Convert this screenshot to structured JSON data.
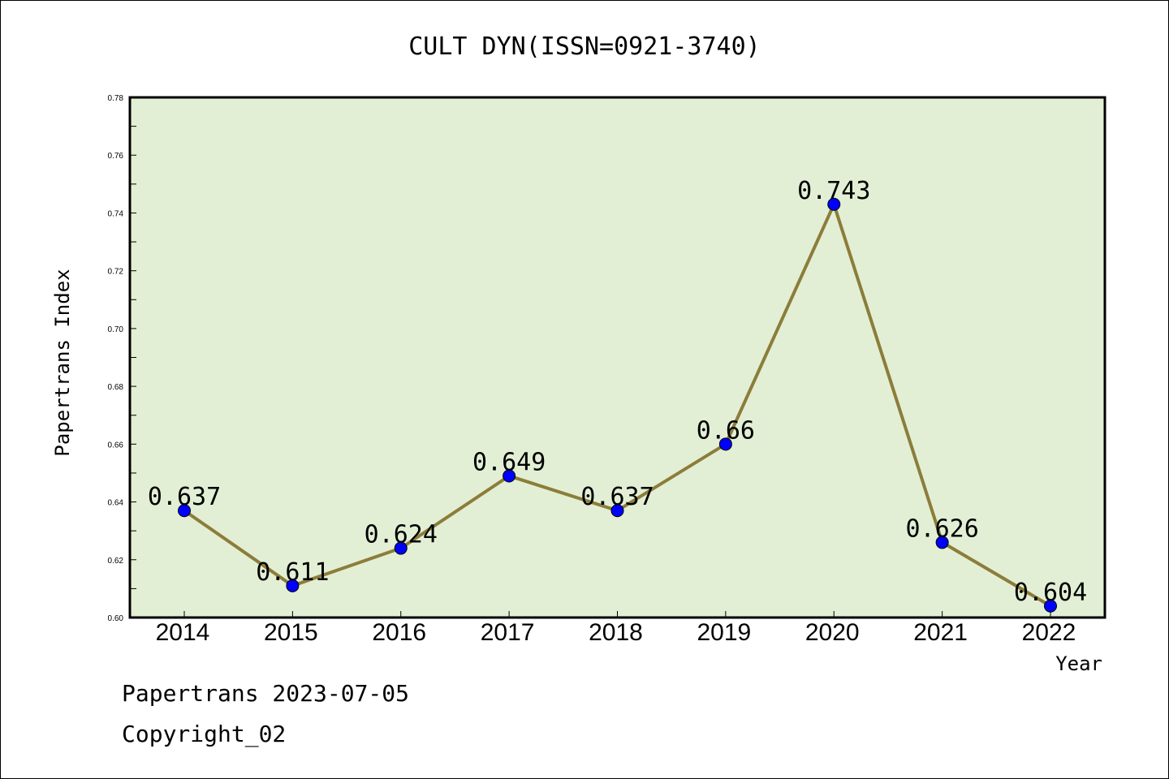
{
  "chart_data": {
    "type": "line",
    "title": "CULT DYN(ISSN=0921-3740)",
    "xlabel": "Year",
    "ylabel": "Papertrans Index",
    "categories": [
      "2014",
      "2015",
      "2016",
      "2017",
      "2018",
      "2019",
      "2020",
      "2021",
      "2022"
    ],
    "values": [
      0.637,
      0.611,
      0.624,
      0.649,
      0.637,
      0.66,
      0.743,
      0.626,
      0.604
    ],
    "data_labels": [
      "0.637",
      "0.611",
      "0.624",
      "0.649",
      "0.637",
      "0.66",
      "0.743",
      "0.626",
      "0.604"
    ],
    "ylim": [
      0.6,
      0.78
    ],
    "ytick_labels": [
      "0.60",
      "0.62",
      "0.64",
      "0.66",
      "0.68",
      "0.70",
      "0.72",
      "0.74",
      "0.76",
      "0.78"
    ],
    "grid": false,
    "colors": {
      "line": "#8B7D3A",
      "marker": "#0000FF",
      "plot_background": "#E2EFD5"
    }
  },
  "footer": {
    "line1": "Papertrans 2023-07-05",
    "line2": "Copyright_02"
  }
}
